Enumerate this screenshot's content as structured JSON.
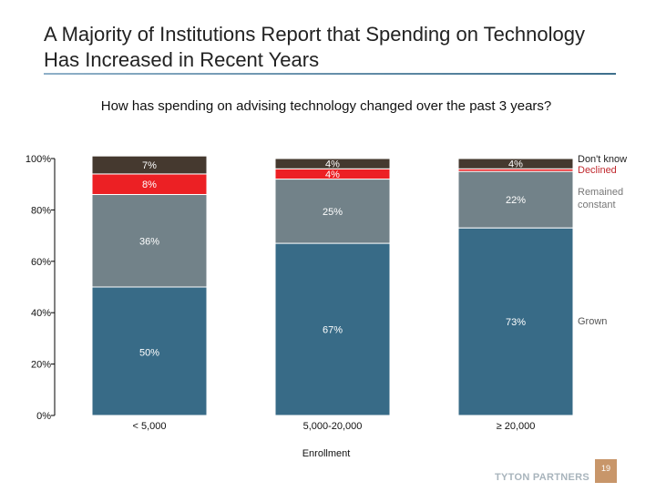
{
  "slide": {
    "title": "A Majority of Institutions Report that Spending on Technology Has Increased in Recent Years",
    "question": "How has spending on advising technology changed over the past 3 years?",
    "brand": "TYTON PARTNERS",
    "page_number": "19"
  },
  "chart_data": {
    "type": "bar",
    "stacked": true,
    "categories": [
      "< 5,000",
      "5,000-20,000",
      "≥ 20,000"
    ],
    "xlabel": "Enrollment",
    "ylabel": "",
    "ylim": [
      0,
      100
    ],
    "yticks": [
      "0%",
      "20%",
      "40%",
      "60%",
      "80%",
      "100%"
    ],
    "legend_placement": "right",
    "series": [
      {
        "name": "Grown",
        "values": [
          50,
          67,
          73
        ],
        "labels": [
          "50%",
          "67%",
          "73%"
        ],
        "color": "#386b87"
      },
      {
        "name": "Remained constant",
        "values": [
          36,
          25,
          22
        ],
        "labels": [
          "36%",
          "25%",
          "22%"
        ],
        "color": "#728289"
      },
      {
        "name": "Declined",
        "values": [
          8,
          4,
          1
        ],
        "labels": [
          "8%",
          "4%",
          ""
        ],
        "color": "#ec2024"
      },
      {
        "name": "Don't know",
        "values": [
          7,
          4,
          4
        ],
        "labels": [
          "7%",
          "4%",
          "4%"
        ],
        "color": "#45392f"
      }
    ]
  }
}
